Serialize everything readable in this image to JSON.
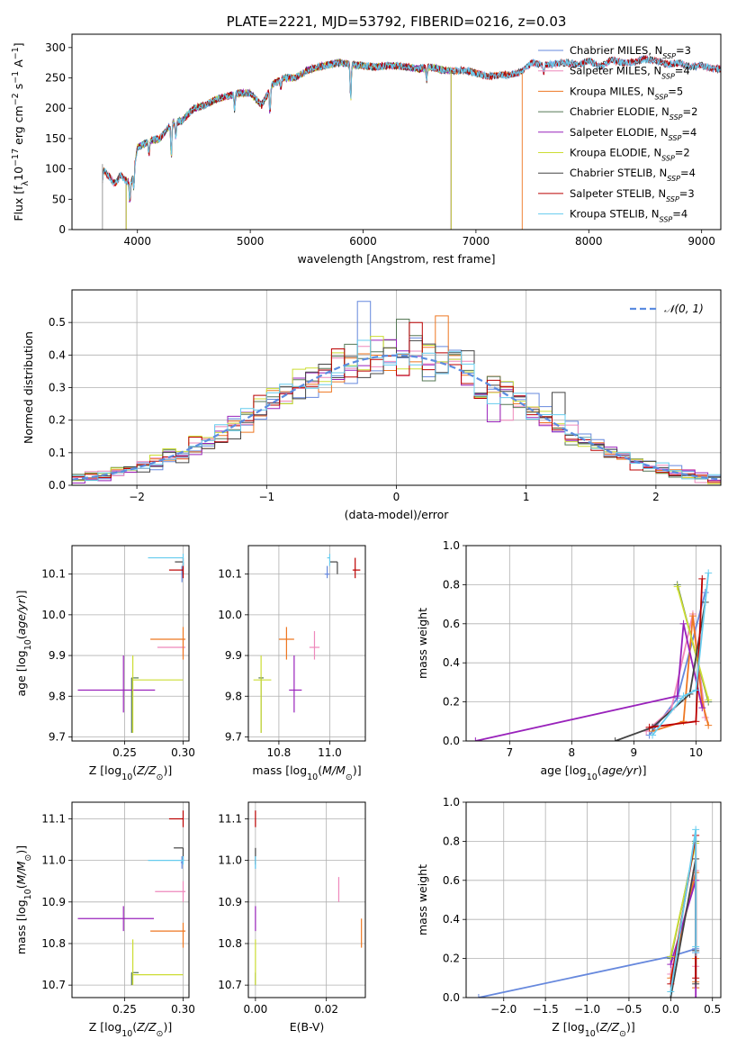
{
  "figure": {
    "colors": {
      "axis": "#000000",
      "grid": "#b0b0b0"
    },
    "series_styles": [
      {
        "color": "#6688dd"
      },
      {
        "color": "#ee88bb"
      },
      {
        "color": "#ee7722"
      },
      {
        "color": "#557755"
      },
      {
        "color": "#9922bb"
      },
      {
        "color": "#ccdd33"
      },
      {
        "color": "#444444"
      },
      {
        "color": "#bb0000"
      },
      {
        "color": "#66ccee"
      }
    ]
  },
  "chart_data": [
    {
      "id": "spectrum",
      "type": "line",
      "title": "PLATE=2221, MJD=53792, FIBERID=0216, z=0.03",
      "xlabel": "wavelength [Angstrom, rest frame]",
      "ylabel": "Flux [f_λ 10^-17 erg cm^-2 s^-1 A^-1]",
      "xlim": [
        3420,
        9170
      ],
      "ylim": [
        0,
        322
      ],
      "xticks": [
        4000,
        5000,
        6000,
        7000,
        8000,
        9000
      ],
      "yticks": [
        0,
        50,
        100,
        150,
        200,
        250,
        300
      ],
      "grid": false,
      "legend_position": "right",
      "legend": [
        "Chabrier MILES, N_SSP=3",
        "Salpeter MILES, N_SSP=4",
        "Kroupa MILES, N_SSP=5",
        "Chabrier ELODIE, N_SSP=2",
        "Salpeter ELODIE, N_SSP=4",
        "Kroupa ELODIE, N_SSP=2",
        "Chabrier STELIB, N_SSP=4",
        "Salpeter STELIB, N_SSP=3",
        "Kroupa STELIB, N_SSP=4"
      ],
      "model_ranges": [
        [
          3690,
          9170
        ],
        [
          3690,
          9170
        ],
        [
          3690,
          7410
        ],
        [
          3900,
          6780
        ],
        [
          3900,
          6780
        ],
        [
          3900,
          6780
        ],
        [
          3690,
          9170
        ],
        [
          3690,
          9170
        ],
        [
          3690,
          9170
        ]
      ],
      "continuum_nodes": {
        "x": [
          3690,
          3700,
          3760,
          3800,
          3850,
          3900,
          3950,
          4000,
          4050,
          4100,
          4200,
          4300,
          4400,
          4500,
          4600,
          4700,
          4800,
          4900,
          5000,
          5100,
          5200,
          5300,
          5400,
          5500,
          5600,
          5700,
          5800,
          5900,
          6000,
          6100,
          6200,
          6300,
          6400,
          6500,
          6600,
          6700,
          6800,
          6900,
          7000,
          7100,
          7200,
          7300,
          7400,
          7500,
          7600,
          7700,
          7800,
          7900,
          8000,
          8100,
          8200,
          8300,
          8400,
          8500,
          8600,
          8700,
          8800,
          8900,
          9000,
          9100,
          9170
        ],
        "y": [
          80,
          98,
          85,
          75,
          90,
          80,
          80,
          135,
          140,
          145,
          150,
          175,
          180,
          200,
          205,
          215,
          220,
          225,
          225,
          205,
          240,
          250,
          250,
          262,
          268,
          272,
          275,
          272,
          270,
          268,
          270,
          270,
          268,
          265,
          268,
          263,
          262,
          262,
          258,
          252,
          255,
          255,
          260,
          275,
          272,
          273,
          275,
          272,
          278,
          268,
          280,
          275,
          276,
          281,
          278,
          272,
          275,
          268,
          270,
          265,
          265
        ]
      },
      "absorption_features": [
        {
          "x": 3933,
          "depth": 35
        },
        {
          "x": 3968,
          "depth": 30
        },
        {
          "x": 4102,
          "depth": 20
        },
        {
          "x": 4300,
          "depth": 55
        },
        {
          "x": 4340,
          "depth": 25
        },
        {
          "x": 4861,
          "depth": 25
        },
        {
          "x": 5175,
          "depth": 40
        },
        {
          "x": 5270,
          "depth": 15
        },
        {
          "x": 5890,
          "depth": 58
        },
        {
          "x": 6563,
          "depth": 20
        },
        {
          "x": 7600,
          "depth": 15
        }
      ]
    },
    {
      "id": "residuals",
      "type": "line",
      "title": "",
      "xlabel": "(data-model)/error",
      "ylabel": "Normed distribution",
      "xlim": [
        -2.5,
        2.5
      ],
      "ylim": [
        0,
        0.6
      ],
      "xticks": [
        -2,
        -1,
        0,
        1,
        2
      ],
      "yticks": [
        0.0,
        0.1,
        0.2,
        0.3,
        0.4,
        0.5
      ],
      "grid": true,
      "legend_position": "upper right",
      "legend": [
        "𝒩(0, 1)"
      ],
      "bin_width": 0.1,
      "gaussian": {
        "mean": 0,
        "sigma": 1,
        "color": "#5b8ce0"
      },
      "histogram_bins": [
        -2.5,
        -2.4,
        -2.3,
        -2.2,
        -2.1,
        -2.0,
        -1.9,
        -1.8,
        -1.7,
        -1.6,
        -1.5,
        -1.4,
        -1.3,
        -1.2,
        -1.1,
        -1.0,
        -0.9,
        -0.8,
        -0.7,
        -0.6,
        -0.5,
        -0.4,
        -0.3,
        -0.2,
        -0.1,
        0.0,
        0.1,
        0.2,
        0.3,
        0.4,
        0.5,
        0.6,
        0.7,
        0.8,
        0.9,
        1.0,
        1.1,
        1.2,
        1.3,
        1.4,
        1.5,
        1.6,
        1.7,
        1.8,
        1.9,
        2.0,
        2.1,
        2.2,
        2.3,
        2.4,
        2.5
      ],
      "series_offsets": [
        0.04,
        -0.03,
        0.02,
        -0.01,
        0.03,
        -0.02,
        0.05,
        -0.04,
        0.01
      ],
      "series_peaks": [
        {
          "x": -0.25,
          "y": 0.565
        },
        {
          "x": 0.85,
          "y": 0.2
        },
        {
          "x": 0.35,
          "y": 0.52
        },
        {
          "x": 0.05,
          "y": 0.51
        },
        {
          "x": 0.75,
          "y": 0.195
        },
        {
          "x": 0.25,
          "y": 0.43
        },
        {
          "x": 1.25,
          "y": 0.285
        },
        {
          "x": 0.15,
          "y": 0.5
        },
        {
          "x": 0.45,
          "y": 0.41
        }
      ]
    },
    {
      "id": "age_vs_Z",
      "type": "scatter",
      "title": "",
      "xlabel": "Z [log10(Z/Z⊙)]",
      "ylabel": "age  [log10(age/yr)]",
      "xlim": [
        0.205,
        0.305
      ],
      "ylim": [
        9.69,
        10.17
      ],
      "xticks": [
        0.25,
        0.3
      ],
      "yticks": [
        9.7,
        9.8,
        9.9,
        10.0,
        10.1
      ],
      "grid": true,
      "points": [
        {
          "x": 0.299,
          "y": 10.1,
          "xlo": 0.299,
          "xhi": 0.3,
          "ylo": 10.08,
          "yhi": 10.12
        },
        {
          "x": 0.3,
          "y": 9.92,
          "xlo": 0.278,
          "xhi": 0.302,
          "ylo": 9.9,
          "yhi": 9.94
        },
        {
          "x": 0.3,
          "y": 9.94,
          "xlo": 0.272,
          "xhi": 0.302,
          "ylo": 9.89,
          "yhi": 9.97
        },
        {
          "x": 0.256,
          "y": 9.845,
          "xlo": 0.256,
          "xhi": 0.262,
          "ylo": 9.71,
          "yhi": 9.845
        },
        {
          "x": 0.249,
          "y": 9.815,
          "xlo": 0.21,
          "xhi": 0.276,
          "ylo": 9.76,
          "yhi": 9.9
        },
        {
          "x": 0.257,
          "y": 9.84,
          "xlo": 0.257,
          "xhi": 0.3,
          "ylo": 9.71,
          "yhi": 9.9
        },
        {
          "x": 0.3,
          "y": 10.13,
          "xlo": 0.293,
          "xhi": 0.3,
          "ylo": 10.1,
          "yhi": 10.13
        },
        {
          "x": 0.3,
          "y": 10.11,
          "xlo": 0.288,
          "xhi": 0.3,
          "ylo": 10.09,
          "yhi": 10.14
        },
        {
          "x": 0.3,
          "y": 10.14,
          "xlo": 0.27,
          "xhi": 0.3,
          "ylo": 10.12,
          "yhi": 10.15
        }
      ]
    },
    {
      "id": "age_vs_mass",
      "type": "scatter",
      "title": "",
      "xlabel": "mass [log10(M/M⊙)]",
      "ylabel": "",
      "xlim": [
        10.68,
        11.14
      ],
      "ylim": [
        9.69,
        10.17
      ],
      "xticks": [
        10.8,
        11.0
      ],
      "yticks": [
        9.7,
        9.8,
        9.9,
        10.0,
        10.1
      ],
      "grid": true,
      "points": [
        {
          "x": 10.99,
          "y": 10.1,
          "xlo": 10.98,
          "xhi": 11.0,
          "ylo": 10.09,
          "yhi": 10.12
        },
        {
          "x": 10.94,
          "y": 9.92,
          "xlo": 10.92,
          "xhi": 10.96,
          "ylo": 9.89,
          "yhi": 9.96
        },
        {
          "x": 10.83,
          "y": 9.94,
          "xlo": 10.8,
          "xhi": 10.86,
          "ylo": 9.89,
          "yhi": 9.97
        },
        {
          "x": 10.73,
          "y": 9.845,
          "xlo": 10.72,
          "xhi": 10.74,
          "ylo": 9.71,
          "yhi": 9.845
        },
        {
          "x": 10.86,
          "y": 9.815,
          "xlo": 10.84,
          "xhi": 10.89,
          "ylo": 9.76,
          "yhi": 9.9
        },
        {
          "x": 10.73,
          "y": 9.84,
          "xlo": 10.7,
          "xhi": 10.77,
          "ylo": 9.71,
          "yhi": 9.9
        },
        {
          "x": 11.03,
          "y": 10.13,
          "xlo": 11.0,
          "xhi": 11.03,
          "ylo": 10.1,
          "yhi": 10.13
        },
        {
          "x": 11.1,
          "y": 10.11,
          "xlo": 11.09,
          "xhi": 11.12,
          "ylo": 10.09,
          "yhi": 10.14
        },
        {
          "x": 11.0,
          "y": 10.14,
          "xlo": 10.99,
          "xhi": 11.0,
          "ylo": 10.12,
          "yhi": 10.15
        }
      ]
    },
    {
      "id": "weight_vs_age",
      "type": "line",
      "title": "",
      "xlabel": "age  [log10(age/yr)]",
      "ylabel": "mass weight",
      "xlim": [
        6.3,
        10.4
      ],
      "ylim": [
        0,
        1.0
      ],
      "xticks": [
        7,
        8,
        9,
        10
      ],
      "yticks": [
        0.0,
        0.2,
        0.4,
        0.6,
        0.8,
        1.0
      ],
      "grid": true,
      "series": [
        {
          "name": "Chabrier MILES, N_SSP=3",
          "x": [
            9.25,
            9.7,
            10.15
          ],
          "y": [
            0.03,
            0.22,
            0.76
          ]
        },
        {
          "name": "Salpeter MILES, N_SSP=4",
          "x": [
            9.2,
            9.6,
            9.95,
            10.15
          ],
          "y": [
            0.05,
            0.16,
            0.65,
            0.12
          ]
        },
        {
          "name": "Kroupa MILES, N_SSP=5",
          "x": [
            9.3,
            9.8,
            9.95,
            10.1,
            10.2
          ],
          "y": [
            0.05,
            0.1,
            0.64,
            0.2,
            0.08
          ]
        },
        {
          "name": "Chabrier ELODIE, N_SSP=2",
          "x": [
            9.7,
            10.2
          ],
          "y": [
            0.8,
            0.2
          ]
        },
        {
          "name": "Salpeter ELODIE, N_SSP=4",
          "x": [
            6.45,
            9.7,
            9.8,
            10.1
          ],
          "y": [
            0.0,
            0.23,
            0.6,
            0.17
          ]
        },
        {
          "name": "Kroupa ELODIE, N_SSP=2",
          "x": [
            9.7,
            10.2
          ],
          "y": [
            0.79,
            0.21
          ]
        },
        {
          "name": "Chabrier STELIB, N_SSP=4",
          "x": [
            8.7,
            9.3,
            9.9,
            10.15
          ],
          "y": [
            0.0,
            0.07,
            0.24,
            0.71
          ]
        },
        {
          "name": "Salpeter STELIB, N_SSP=3",
          "x": [
            9.25,
            10.0,
            10.1
          ],
          "y": [
            0.07,
            0.1,
            0.83
          ]
        },
        {
          "name": "Kroupa STELIB, N_SSP=4",
          "x": [
            9.3,
            9.8,
            10.0,
            10.2
          ],
          "y": [
            0.03,
            0.23,
            0.26,
            0.86
          ]
        }
      ]
    },
    {
      "id": "mass_vs_Z",
      "type": "scatter",
      "title": "",
      "xlabel": "Z [log10(Z/Z⊙)]",
      "ylabel": "mass [log10(M/M⊙)]",
      "xlim": [
        0.205,
        0.305
      ],
      "ylim": [
        10.67,
        11.14
      ],
      "xticks": [
        0.25,
        0.3
      ],
      "yticks": [
        10.7,
        10.8,
        10.9,
        11.0,
        11.1
      ],
      "grid": true,
      "points": [
        {
          "x": 0.299,
          "y": 10.995,
          "xlo": 0.298,
          "xhi": 0.3,
          "ylo": 10.98,
          "yhi": 11.01
        },
        {
          "x": 0.3,
          "y": 10.925,
          "xlo": 0.276,
          "xhi": 0.302,
          "ylo": 10.9,
          "yhi": 10.95
        },
        {
          "x": 0.3,
          "y": 10.83,
          "xlo": 0.272,
          "xhi": 0.302,
          "ylo": 10.79,
          "yhi": 10.85
        },
        {
          "x": 0.256,
          "y": 10.73,
          "xlo": 0.256,
          "xhi": 0.262,
          "ylo": 10.7,
          "yhi": 10.73
        },
        {
          "x": 0.249,
          "y": 10.86,
          "xlo": 0.21,
          "xhi": 0.275,
          "ylo": 10.83,
          "yhi": 10.89
        },
        {
          "x": 0.257,
          "y": 10.725,
          "xlo": 0.257,
          "xhi": 0.3,
          "ylo": 10.7,
          "yhi": 10.81
        },
        {
          "x": 0.3,
          "y": 11.03,
          "xlo": 0.292,
          "xhi": 0.3,
          "ylo": 11.0,
          "yhi": 11.03
        },
        {
          "x": 0.3,
          "y": 11.1,
          "xlo": 0.288,
          "xhi": 0.3,
          "ylo": 11.08,
          "yhi": 11.12
        },
        {
          "x": 0.3,
          "y": 11.0,
          "xlo": 0.27,
          "xhi": 0.301,
          "ylo": 10.99,
          "yhi": 11.01
        }
      ]
    },
    {
      "id": "mass_vs_EBV",
      "type": "scatter",
      "title": "",
      "xlabel": "E(B-V)",
      "ylabel": "",
      "xlim": [
        -0.002,
        0.031
      ],
      "ylim": [
        10.67,
        11.14
      ],
      "xticks": [
        0.0,
        0.02
      ],
      "yticks": [
        10.7,
        10.8,
        10.9,
        11.0,
        11.1
      ],
      "grid": true,
      "points": [
        {
          "x": 0.0,
          "y": 10.995,
          "xlo": 0.0,
          "xhi": 0.0,
          "ylo": 10.98,
          "yhi": 11.01
        },
        {
          "x": 0.0235,
          "y": 10.925,
          "xlo": 0.0235,
          "xhi": 0.0235,
          "ylo": 10.9,
          "yhi": 10.96
        },
        {
          "x": 0.0299,
          "y": 10.825,
          "xlo": 0.0299,
          "xhi": 0.0299,
          "ylo": 10.79,
          "yhi": 10.86
        },
        {
          "x": 0.0,
          "y": 10.73,
          "xlo": 0.0,
          "xhi": 0.0,
          "ylo": 10.7,
          "yhi": 10.73
        },
        {
          "x": 0.0,
          "y": 10.86,
          "xlo": 0.0,
          "xhi": 0.0,
          "ylo": 10.83,
          "yhi": 10.89
        },
        {
          "x": 0.0,
          "y": 10.75,
          "xlo": 0.0,
          "xhi": 0.0,
          "ylo": 10.7,
          "yhi": 10.81
        },
        {
          "x": 0.0,
          "y": 11.01,
          "xlo": 0.0,
          "xhi": 0.0,
          "ylo": 10.99,
          "yhi": 11.03
        },
        {
          "x": 0.0,
          "y": 11.1,
          "xlo": 0.0,
          "xhi": 0.0,
          "ylo": 11.08,
          "yhi": 11.12
        },
        {
          "x": 0.0,
          "y": 11.0,
          "xlo": 0.0,
          "xhi": 0.0,
          "ylo": 10.98,
          "yhi": 11.01
        }
      ]
    },
    {
      "id": "weight_vs_Z",
      "type": "line",
      "title": "",
      "xlabel": "Z [log10(Z/Z⊙)]",
      "ylabel": "mass weight",
      "xlim": [
        -2.45,
        0.6
      ],
      "ylim": [
        0,
        1.0
      ],
      "xticks": [
        -2.0,
        -1.5,
        -1.0,
        -0.5,
        0.0,
        0.5
      ],
      "yticks": [
        0.0,
        0.2,
        0.4,
        0.6,
        0.8,
        1.0
      ],
      "grid": true,
      "series": [
        {
          "name": "Chabrier MILES, N_SSP=3",
          "x": [
            -2.3,
            0.0,
            0.3
          ],
          "y": [
            0.0,
            0.21,
            0.25
          ]
        },
        {
          "name": "Salpeter MILES, N_SSP=4",
          "x": [
            0.0,
            0.3,
            0.3,
            0.3
          ],
          "y": [
            0.12,
            0.65,
            0.16,
            0.05
          ]
        },
        {
          "name": "Kroupa MILES, N_SSP=5",
          "x": [
            0.0,
            0.3,
            0.3,
            0.3,
            0.3
          ],
          "y": [
            0.1,
            0.64,
            0.2,
            0.08,
            0.05
          ]
        },
        {
          "name": "Chabrier ELODIE, N_SSP=2",
          "x": [
            0.0,
            0.3
          ],
          "y": [
            0.2,
            0.8
          ]
        },
        {
          "name": "Salpeter ELODIE, N_SSP=4",
          "x": [
            0.0,
            0.3,
            0.3,
            0.3
          ],
          "y": [
            0.17,
            0.6,
            0.23,
            0.0
          ]
        },
        {
          "name": "Kroupa ELODIE, N_SSP=2",
          "x": [
            0.0,
            0.3
          ],
          "y": [
            0.21,
            0.79
          ]
        },
        {
          "name": "Chabrier STELIB, N_SSP=4",
          "x": [
            0.0,
            0.3,
            0.3,
            0.3
          ],
          "y": [
            0.0,
            0.71,
            0.24,
            0.07
          ]
        },
        {
          "name": "Salpeter STELIB, N_SSP=3",
          "x": [
            0.0,
            0.3,
            0.3
          ],
          "y": [
            0.07,
            0.83,
            0.1
          ]
        },
        {
          "name": "Kroupa STELIB, N_SSP=4",
          "x": [
            0.0,
            0.3,
            0.3,
            0.3
          ],
          "y": [
            0.03,
            0.86,
            0.26,
            0.23
          ]
        }
      ]
    }
  ]
}
